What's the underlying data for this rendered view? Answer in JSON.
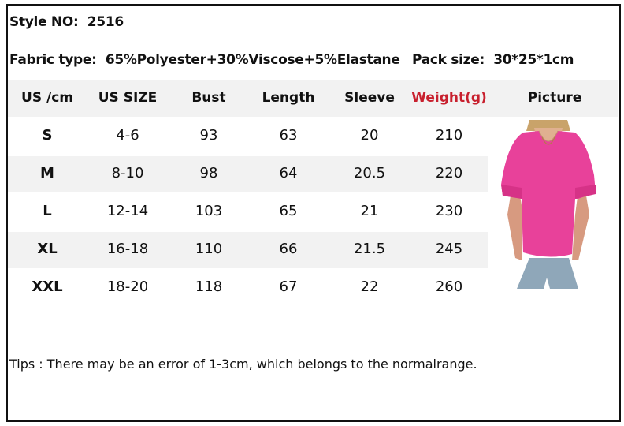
{
  "style_no": {
    "label": "Style NO:",
    "value": "2516"
  },
  "fabric": {
    "label": "Fabric type:",
    "value": "65%Polyester+30%Viscose+5%Elastane"
  },
  "pack": {
    "label": "Pack size:",
    "value": "30*25*1cm"
  },
  "headers": [
    "US /cm",
    "US SIZE",
    "Bust",
    "Length",
    "Sleeve",
    "Weight(g)",
    "Picture"
  ],
  "colors": {
    "weight_header": "#c8202e",
    "header_bg": "#f2f2f2",
    "shirt": "#e8419a"
  },
  "rows": [
    [
      "S",
      "4-6",
      "93",
      "63",
      "20",
      "210"
    ],
    [
      "M",
      "8-10",
      "98",
      "64",
      "20.5",
      "220"
    ],
    [
      "L",
      "12-14",
      "103",
      "65",
      "21",
      "230"
    ],
    [
      "XL",
      "16-18",
      "110",
      "66",
      "21.5",
      "245"
    ],
    [
      "XXL",
      "18-20",
      "118",
      "67",
      "22",
      "260"
    ]
  ],
  "tips": "Tips : There may be an error of 1-3cm, which belongs to the normalrange.",
  "picture_icon": "pink-ruffle-sleeve-top-photo"
}
